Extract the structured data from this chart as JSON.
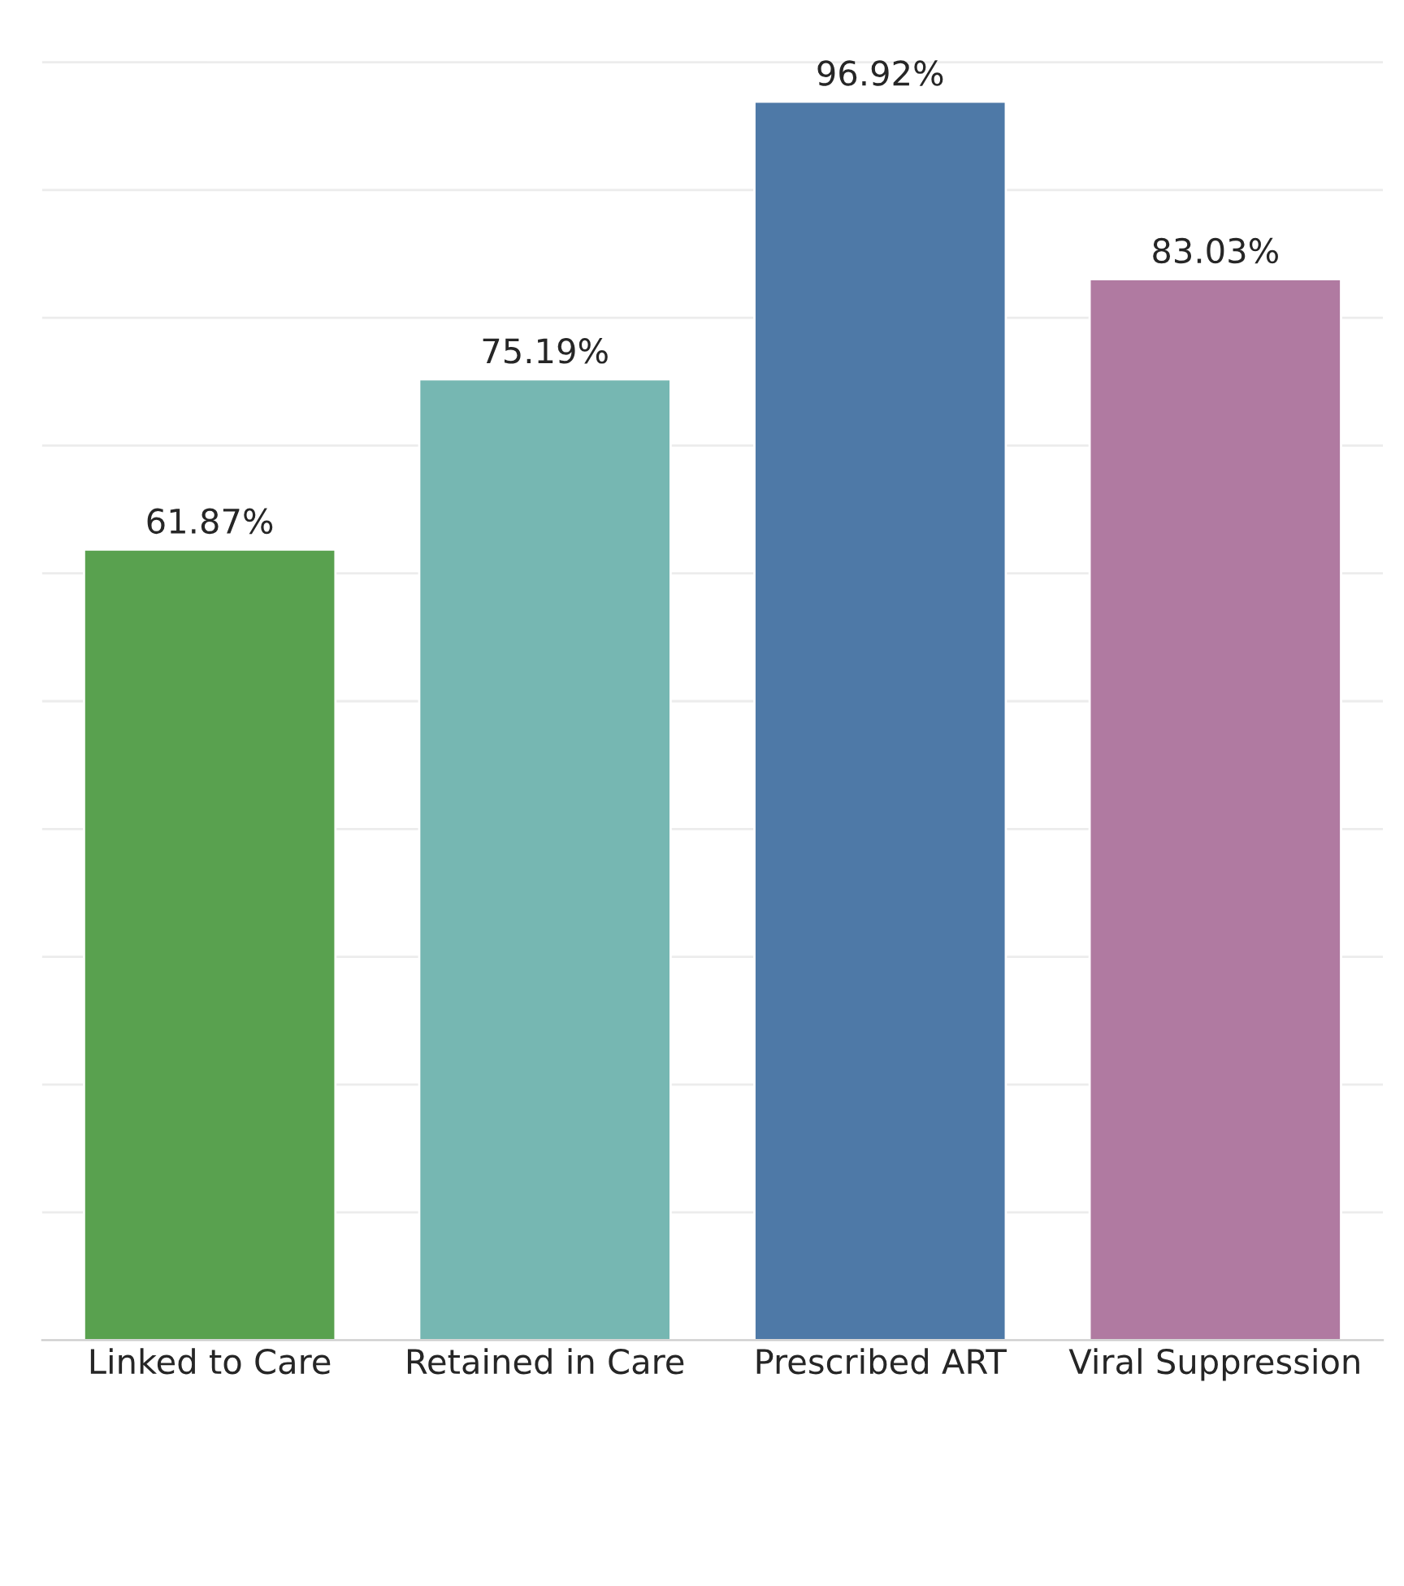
{
  "chart_data": {
    "type": "bar",
    "categories": [
      "Linked to Care",
      "Retained in Care",
      "Prescribed ART",
      "Viral Suppression"
    ],
    "values": [
      61.87,
      75.19,
      96.92,
      83.03
    ],
    "colors": [
      "#59a14f",
      "#76b7b2",
      "#4e79a7",
      "#b07aa1"
    ],
    "value_labels": [
      "61.87%",
      "75.19%",
      "96.92%",
      "83.03%"
    ],
    "yticks": [
      {
        "value": 10,
        "label": null
      },
      {
        "value": 20,
        "label": null
      },
      {
        "value": 30,
        "label": null
      },
      {
        "value": 40,
        "label": null
      },
      {
        "value": 50,
        "label": null
      },
      {
        "value": 60,
        "label": null
      },
      {
        "value": 70,
        "label": null
      },
      {
        "value": 80,
        "label": null
      },
      {
        "value": 90,
        "label": null
      },
      {
        "value": 100,
        "label": null
      }
    ],
    "grid": "y",
    "tick_labels": "x"
  }
}
